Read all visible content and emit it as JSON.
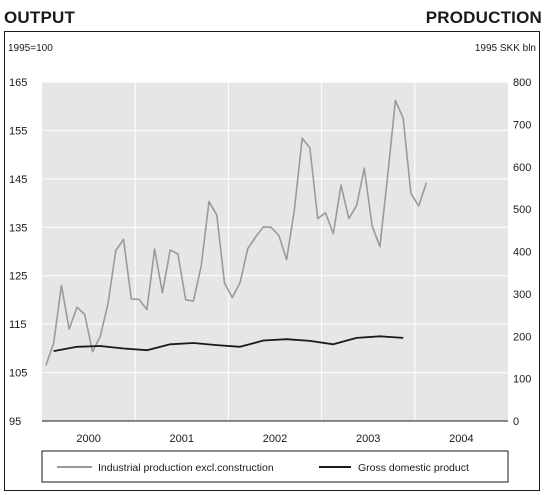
{
  "header": {
    "left_title": "OUTPUT",
    "right_title": "PRODUCTION"
  },
  "chart_data": {
    "type": "line",
    "left_axis_unit": "1995=100",
    "right_axis_unit": "1995 SKK bln",
    "left_ylim": [
      95,
      165
    ],
    "left_yticks": [
      95,
      105,
      115,
      125,
      135,
      145,
      155,
      165
    ],
    "right_ylim": [
      0,
      800
    ],
    "right_yticks": [
      0,
      100,
      200,
      300,
      400,
      500,
      600,
      700,
      800
    ],
    "x_categories": [
      "2000",
      "2001",
      "2002",
      "2003",
      "2004"
    ],
    "grid": true,
    "plot_background": "#e6e6e6",
    "series": [
      {
        "name": "Industrial production excl.construction",
        "axis": "left",
        "frequency": "monthly",
        "start": "2000-01",
        "color": "#9a9a9a",
        "values": [
          106.5,
          111,
          123,
          114,
          118.5,
          117,
          109.3,
          112.5,
          119.2,
          130.2,
          132.5,
          120.2,
          120.1,
          118,
          130.5,
          121.5,
          130.3,
          129.5,
          120,
          119.8,
          127,
          140.3,
          137.5,
          123.5,
          120.5,
          123.6,
          130.6,
          133,
          135.1,
          135,
          133.3,
          128.3,
          138.6,
          153.4,
          151.4,
          136.8,
          138,
          133.7,
          143.7,
          136.8,
          139.5,
          147.2,
          135.3,
          131,
          145.5,
          161.2,
          157.5,
          142,
          139.4,
          144.2
        ]
      },
      {
        "name": "Gross domestic product",
        "axis": "right",
        "frequency": "quarterly",
        "start": "2000-Q1",
        "color": "#1a1a1a",
        "values": [
          165,
          175,
          177,
          171,
          167,
          181,
          184,
          179,
          175,
          190,
          193,
          189,
          181,
          196,
          200,
          196
        ]
      }
    ],
    "legend_position": "bottom"
  },
  "colors": {
    "text": "#1a1a1a",
    "grid": "#ffffff",
    "frame": "#1a1a1a"
  }
}
